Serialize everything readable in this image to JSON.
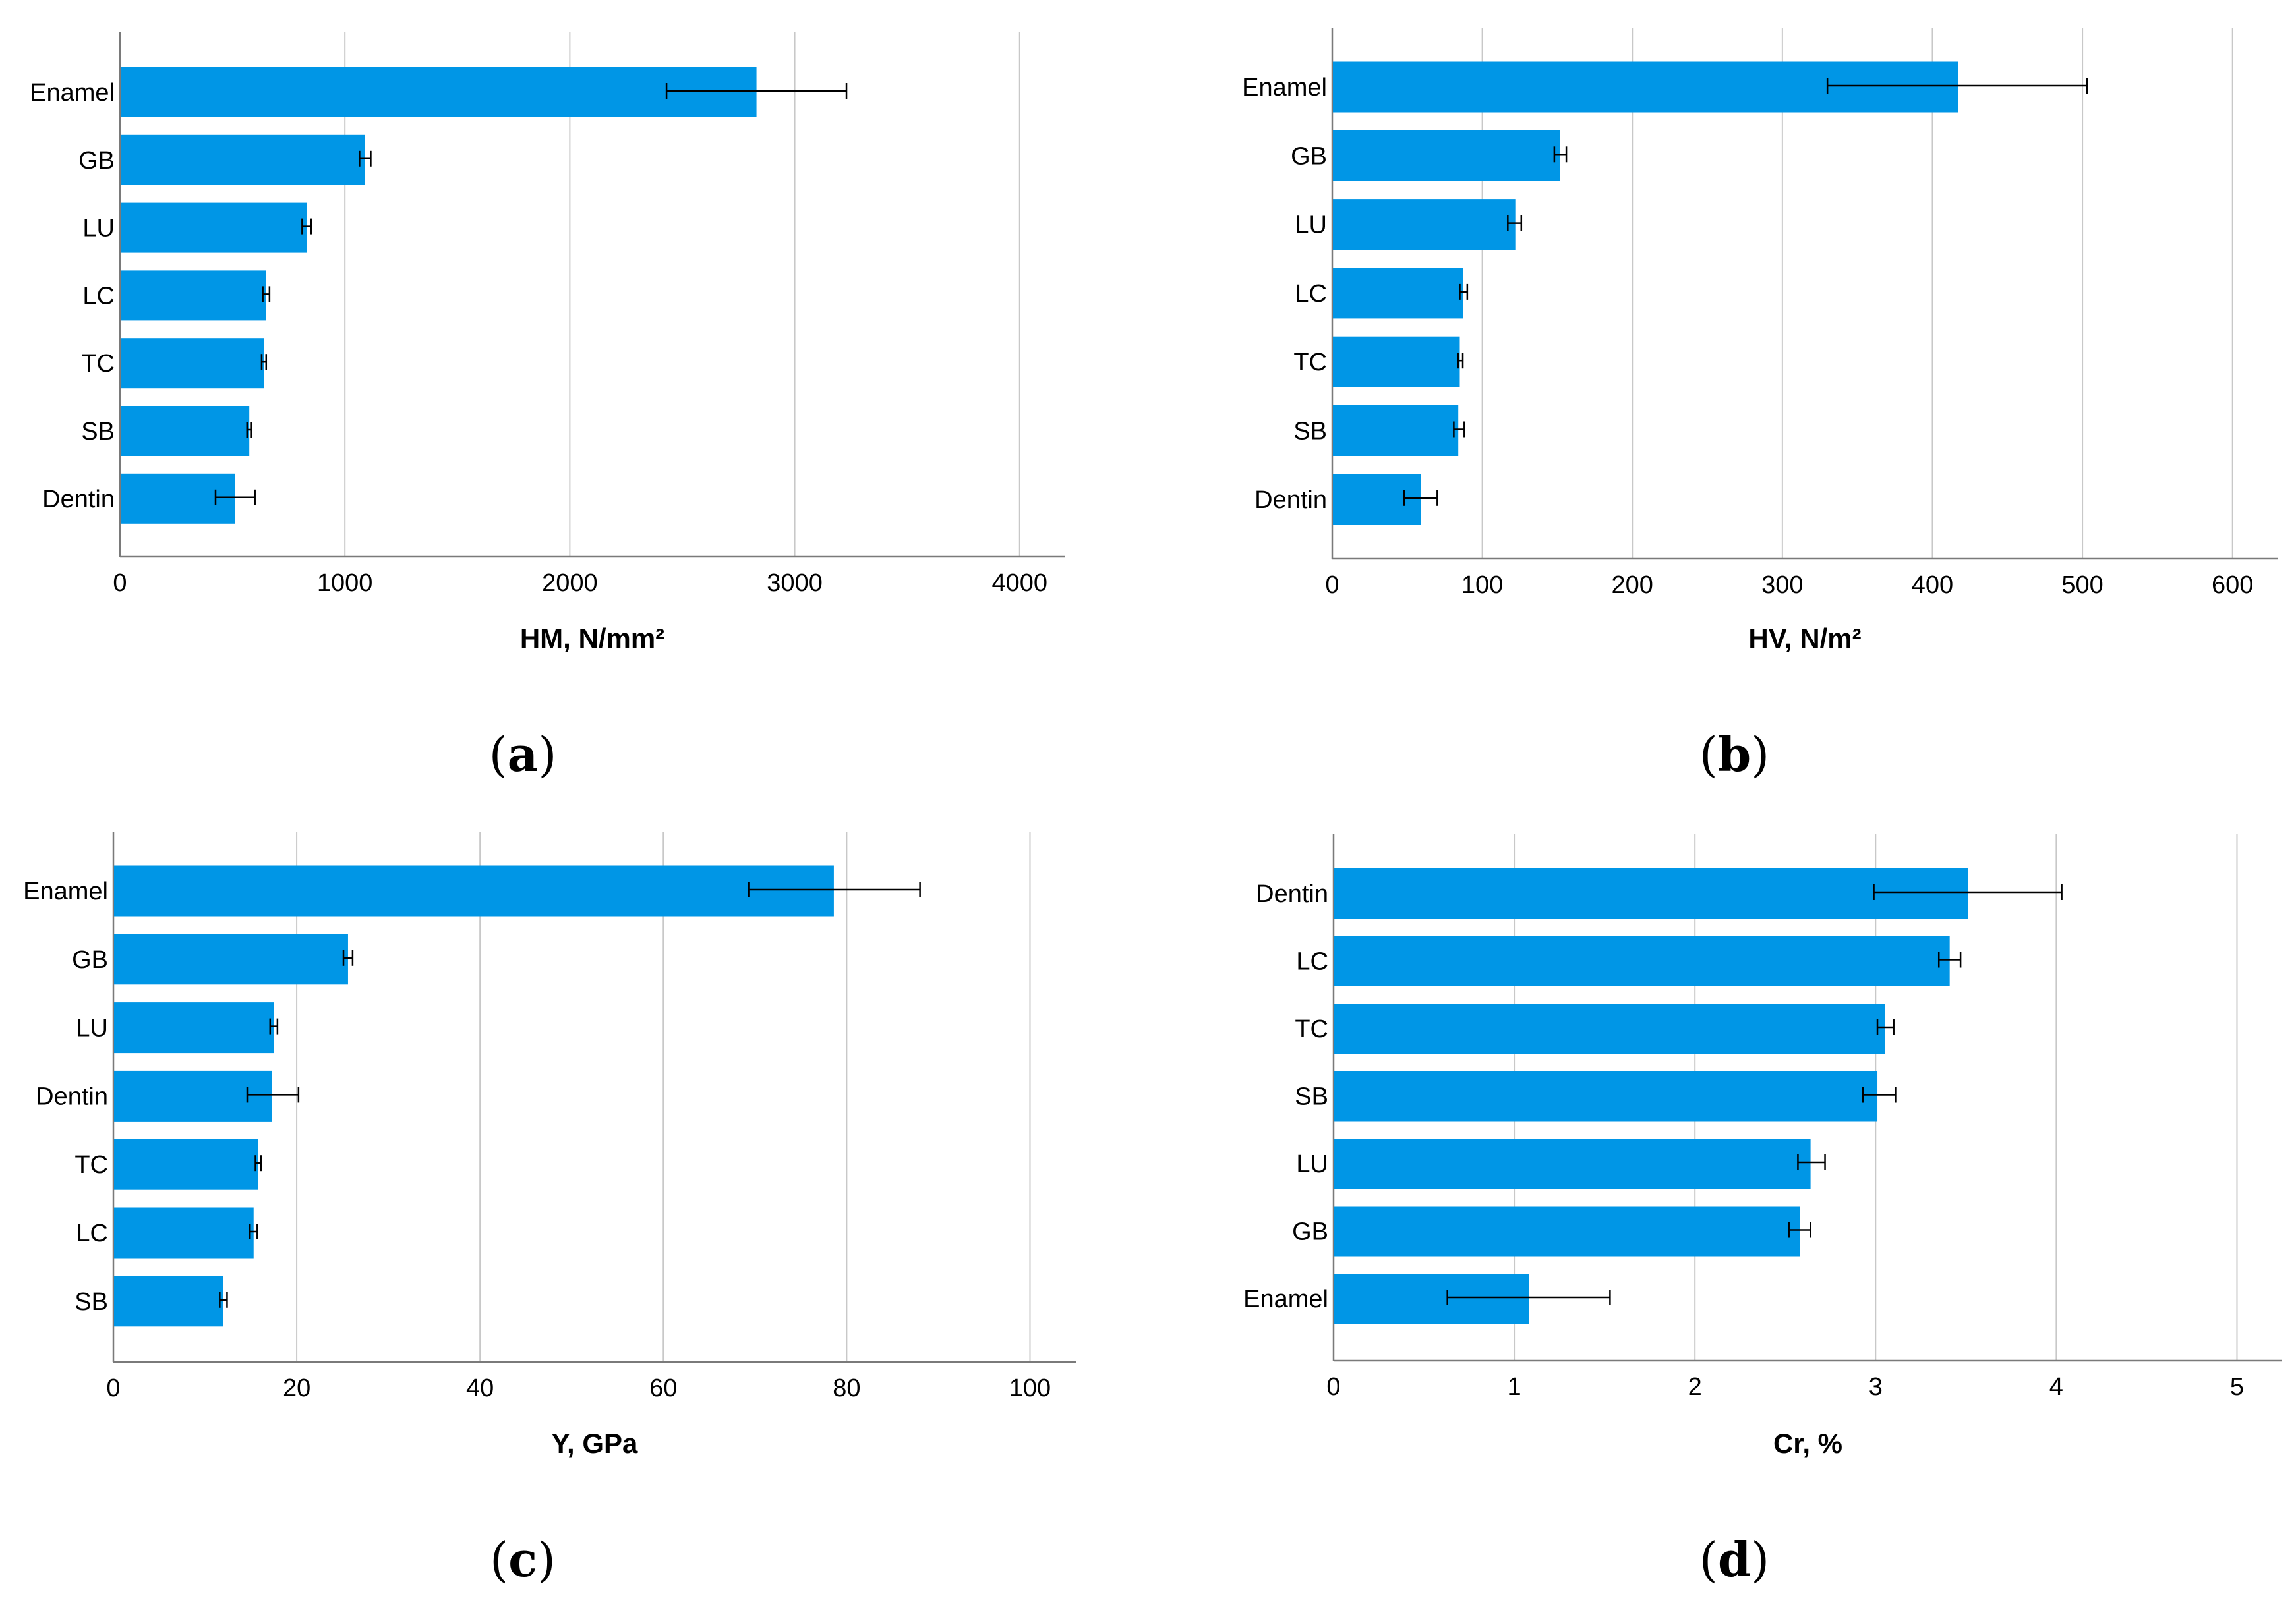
{
  "colors": {
    "bar": "#0096E6",
    "grid": "#c8c8c8",
    "axis": "#7a7a7a",
    "errorbar": "#000000"
  },
  "chart_data": [
    {
      "id": "a",
      "type": "bar",
      "orientation": "horizontal",
      "panel_label": "(a)",
      "categories": [
        "Enamel",
        "GB",
        "LU",
        "LC",
        "TC",
        "SB",
        "Dentin"
      ],
      "values": [
        2830,
        1090,
        830,
        650,
        640,
        575,
        510
      ],
      "error_low": [
        2430,
        1065,
        810,
        635,
        630,
        565,
        425
      ],
      "error_high": [
        3230,
        1115,
        850,
        665,
        650,
        585,
        600
      ],
      "xlabel": "HM, N/mm²",
      "xlim": [
        0,
        4200
      ],
      "ticks": [
        0,
        1000,
        2000,
        3000,
        4000
      ],
      "tick_labels": [
        "0",
        "1000",
        "2000",
        "3000",
        "4000"
      ],
      "grid": true
    },
    {
      "id": "b",
      "type": "bar",
      "orientation": "horizontal",
      "panel_label": "(b)",
      "categories": [
        "Enamel",
        "GB",
        "LU",
        "LC",
        "TC",
        "SB",
        "Dentin"
      ],
      "values": [
        417,
        152,
        122,
        87,
        85,
        84,
        59
      ],
      "error_low": [
        330,
        148,
        117,
        85,
        84,
        81,
        48
      ],
      "error_high": [
        503,
        156,
        126,
        90,
        87,
        88,
        70
      ],
      "xlabel": "HV, N/m²",
      "xlim": [
        0,
        630
      ],
      "ticks": [
        0,
        100,
        200,
        300,
        400,
        500,
        600
      ],
      "tick_labels": [
        "0",
        "100",
        "200",
        "300",
        "400",
        "500",
        "600"
      ],
      "grid": true
    },
    {
      "id": "c",
      "type": "bar",
      "orientation": "horizontal",
      "panel_label": "(c)",
      "categories": [
        "Enamel",
        "GB",
        "LU",
        "Dentin",
        "TC",
        "LC",
        "SB"
      ],
      "values": [
        78.6,
        25.6,
        17.5,
        17.3,
        15.8,
        15.3,
        12.0
      ],
      "error_low": [
        69.3,
        25.1,
        17.1,
        14.6,
        15.5,
        14.9,
        11.6
      ],
      "error_high": [
        88.0,
        26.1,
        17.9,
        20.2,
        16.1,
        15.7,
        12.4
      ],
      "xlabel": "Y, GPa",
      "xlim": [
        0,
        105
      ],
      "ticks": [
        0,
        20,
        40,
        60,
        80,
        100
      ],
      "tick_labels": [
        "0",
        "20",
        "40",
        "60",
        "80",
        "100"
      ],
      "grid": true
    },
    {
      "id": "d",
      "type": "bar",
      "orientation": "horizontal",
      "panel_label": "(d)",
      "categories": [
        "Dentin",
        "LC",
        "TC",
        "SB",
        "LU",
        "GB",
        "Enamel"
      ],
      "values": [
        3.51,
        3.41,
        3.05,
        3.01,
        2.64,
        2.58,
        1.08
      ],
      "error_low": [
        2.99,
        3.35,
        3.01,
        2.93,
        2.57,
        2.52,
        0.63
      ],
      "error_high": [
        4.03,
        3.47,
        3.1,
        3.11,
        2.72,
        2.64,
        1.53
      ],
      "xlabel": "Cr, %",
      "xlim": [
        0,
        5.25
      ],
      "ticks": [
        0,
        1,
        2,
        3,
        4,
        5
      ],
      "tick_labels": [
        "0",
        "1",
        "2",
        "3",
        "4",
        "5"
      ],
      "grid": true
    }
  ]
}
